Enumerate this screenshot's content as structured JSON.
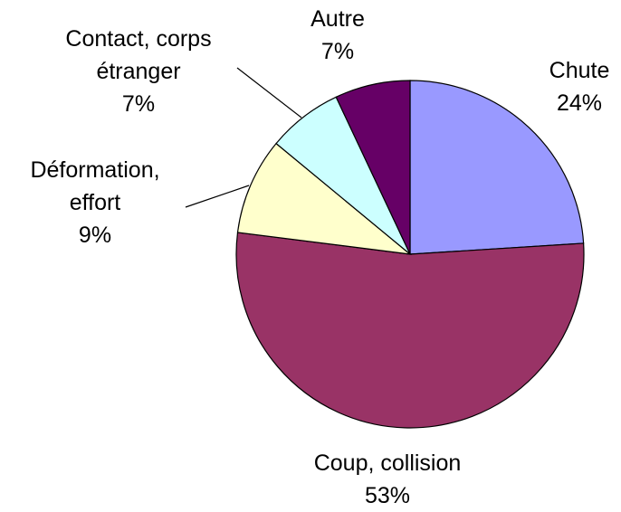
{
  "chart_data": {
    "type": "pie",
    "categories": [
      "Chute",
      "Coup, collision",
      "Déformation, effort",
      "Contact, corps étranger",
      "Autre"
    ],
    "values": [
      24,
      53,
      9,
      7,
      7
    ],
    "value_labels": [
      "24%",
      "53%",
      "9%",
      "7%",
      "7%"
    ],
    "colors": [
      "#9999ff",
      "#993366",
      "#ffffcc",
      "#ccffff",
      "#660066"
    ]
  }
}
